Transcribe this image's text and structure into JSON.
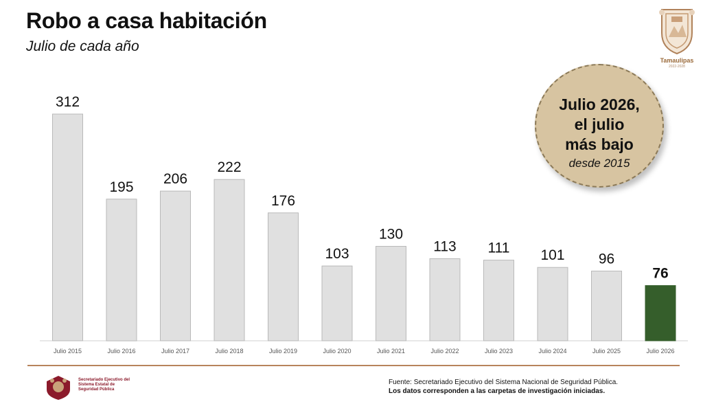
{
  "header": {
    "title": "Robo a casa habitación",
    "subtitle": "Julio de cada año"
  },
  "logo": {
    "name": "Tamaulipas",
    "years": "2022-2028",
    "icon": "tamaulipas-coat-of-arms-icon",
    "color": "#9a6a3a"
  },
  "badge": {
    "line1": "Julio 2026,",
    "line2": "el julio",
    "line3": "más bajo",
    "line4": "desde 2015",
    "color": "#d7c4a1"
  },
  "chart_data": {
    "type": "bar",
    "title": "Robo a casa habitación",
    "subtitle": "Julio de cada año",
    "xlabel": "",
    "ylabel": "",
    "categories": [
      "Julio 2015",
      "Julio 2016",
      "Julio 2017",
      "Julio 2018",
      "Julio 2019",
      "Julio 2020",
      "Julio 2021",
      "Julio 2022",
      "Julio 2023",
      "Julio 2024",
      "Julio 2025",
      "Julio 2026"
    ],
    "values": [
      312,
      195,
      206,
      222,
      176,
      103,
      130,
      113,
      111,
      101,
      96,
      76
    ],
    "highlight_index": 11,
    "bar_color": "#e0e0e0",
    "bar_border_color": "#b9b9b9",
    "highlight_color": "#355e2b",
    "ylim": [
      0,
      312
    ],
    "grid": false,
    "legend": "none"
  },
  "footer": {
    "seal_text": "Secretariado Ejecutivo del Sistema Estatal de Seguridad Pública",
    "seal_icon": "state-security-seal-icon",
    "source_line1": "Fuente: Secretariado Ejecutivo del Sistema Nacional de Seguridad Pública.",
    "source_line2": "Los datos corresponden a las carpetas de investigación iniciadas.",
    "rule_color": "#b7835c"
  }
}
